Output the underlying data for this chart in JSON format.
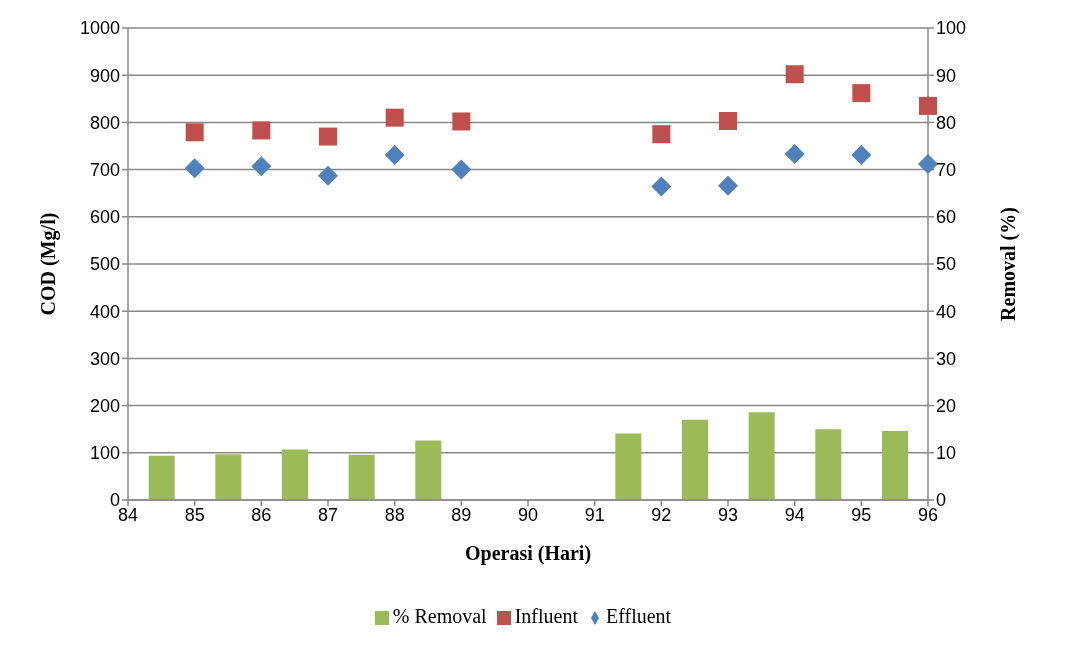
{
  "chart_data": {
    "type": "scatter",
    "xlabel": "Operasi (Hari)",
    "ylabel": "COD (Mg/l)",
    "y2label": "Removal (%)",
    "xlim": [
      84,
      96
    ],
    "xticks": [
      84,
      85,
      86,
      87,
      88,
      89,
      90,
      91,
      92,
      93,
      94,
      95,
      96
    ],
    "ylim": [
      0,
      1000
    ],
    "yticks": [
      0,
      100,
      200,
      300,
      400,
      500,
      600,
      700,
      800,
      900,
      1000
    ],
    "y2lim": [
      0,
      100
    ],
    "y2ticks": [
      0,
      10,
      20,
      30,
      40,
      50,
      60,
      70,
      80,
      90,
      100
    ],
    "grid": "y",
    "legend": "bottom",
    "series": [
      {
        "name": "% Removal",
        "type": "bar",
        "axis": "y2",
        "color": "#9bbb59",
        "x": [
          84.5,
          85.5,
          86.5,
          87.5,
          88.5,
          91.5,
          92.5,
          93.5,
          94.5,
          95.5
        ],
        "values": [
          9.4,
          9.7,
          10.7,
          9.6,
          12.6,
          14.1,
          17.0,
          18.6,
          15.0,
          14.6
        ]
      },
      {
        "name": "Influent",
        "marker": "square",
        "color": "#c0504d",
        "x": [
          85,
          86,
          87,
          88,
          89,
          92,
          93,
          94,
          95,
          96
        ],
        "values": [
          779,
          783,
          770,
          810,
          802,
          775,
          803,
          902,
          862,
          835
        ]
      },
      {
        "name": "Effluent",
        "marker": "diamond",
        "color": "#4f81bd",
        "x": [
          85,
          86,
          87,
          88,
          89,
          92,
          93,
          94,
          95,
          96
        ],
        "values": [
          703,
          707,
          687,
          731,
          700,
          664,
          666,
          733,
          731,
          712
        ]
      }
    ]
  }
}
